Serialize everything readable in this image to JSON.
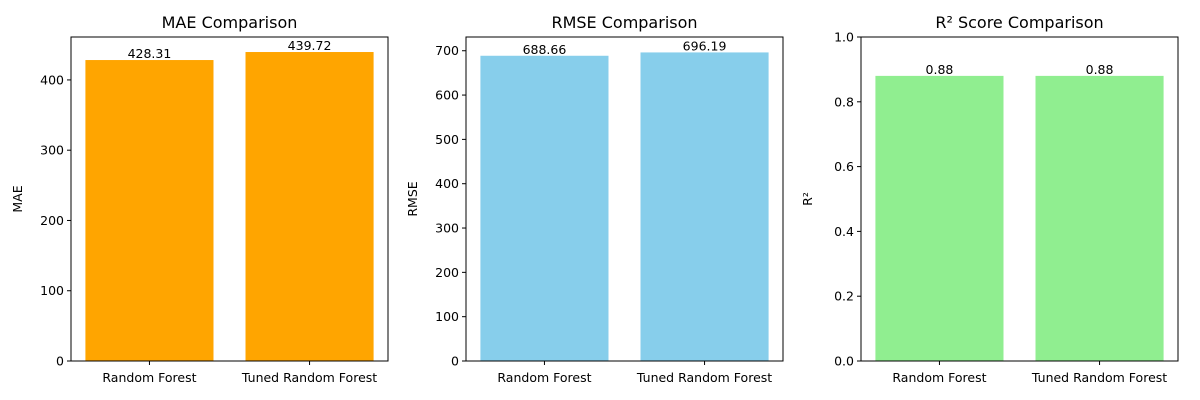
{
  "chart_data": [
    {
      "type": "bar",
      "title": "MAE Comparison",
      "xlabel": "",
      "ylabel": "MAE",
      "categories": [
        "Random Forest",
        "Tuned Random Forest"
      ],
      "values": [
        428.31,
        439.72
      ],
      "data_labels": [
        "428.31",
        "439.72"
      ],
      "ylim": [
        0,
        461.1
      ],
      "yticks": [
        0,
        100,
        200,
        300,
        400
      ],
      "ytick_labels": [
        "0",
        "100",
        "200",
        "300",
        "400"
      ],
      "color": "#ffa500",
      "grid": false
    },
    {
      "type": "bar",
      "title": "RMSE Comparison",
      "xlabel": "",
      "ylabel": "RMSE",
      "categories": [
        "Random Forest",
        "Tuned Random Forest"
      ],
      "values": [
        688.66,
        696.19
      ],
      "data_labels": [
        "688.66",
        "696.19"
      ],
      "ylim": [
        0,
        731.0
      ],
      "yticks": [
        0,
        100,
        200,
        300,
        400,
        500,
        600,
        700
      ],
      "ytick_labels": [
        "0",
        "100",
        "200",
        "300",
        "400",
        "500",
        "600",
        "700"
      ],
      "color": "#87ceeb",
      "grid": false
    },
    {
      "type": "bar",
      "title": "R² Score Comparison",
      "xlabel": "",
      "ylabel": "R²",
      "categories": [
        "Random Forest",
        "Tuned Random Forest"
      ],
      "values": [
        0.88,
        0.88
      ],
      "data_labels": [
        "0.88",
        "0.88"
      ],
      "ylim": [
        0,
        1
      ],
      "yticks": [
        0,
        0.2,
        0.4,
        0.6,
        0.8,
        1.0
      ],
      "ytick_labels": [
        "0.0",
        "0.2",
        "0.4",
        "0.6",
        "0.8",
        "1.0"
      ],
      "color": "#90ee90",
      "grid": false
    }
  ]
}
